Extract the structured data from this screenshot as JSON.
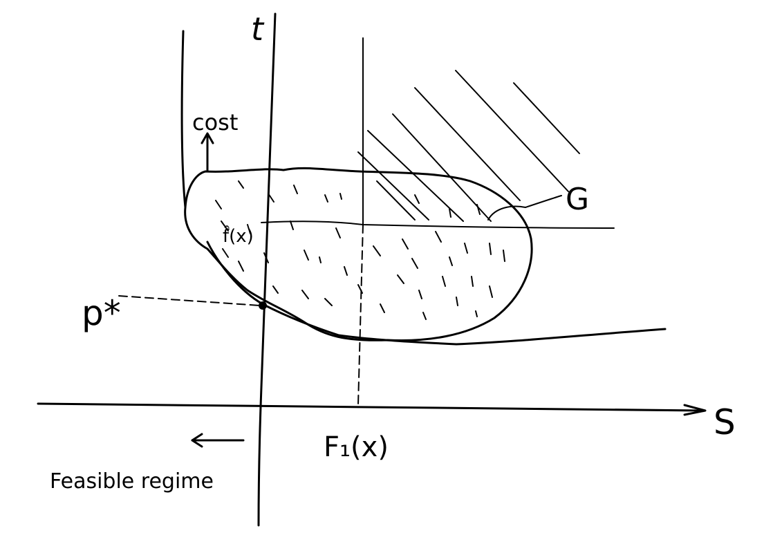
{
  "labels": {
    "t_axis": "t",
    "s_axis": "S",
    "cost": "cost",
    "region_name": "G",
    "f0_value": "f̂(x)",
    "optimum": "p*",
    "f1_value": "F₁(x)",
    "feasible": "Feasible regime"
  },
  "colors": {
    "ink": "#000000",
    "paper": "#ffffff"
  }
}
